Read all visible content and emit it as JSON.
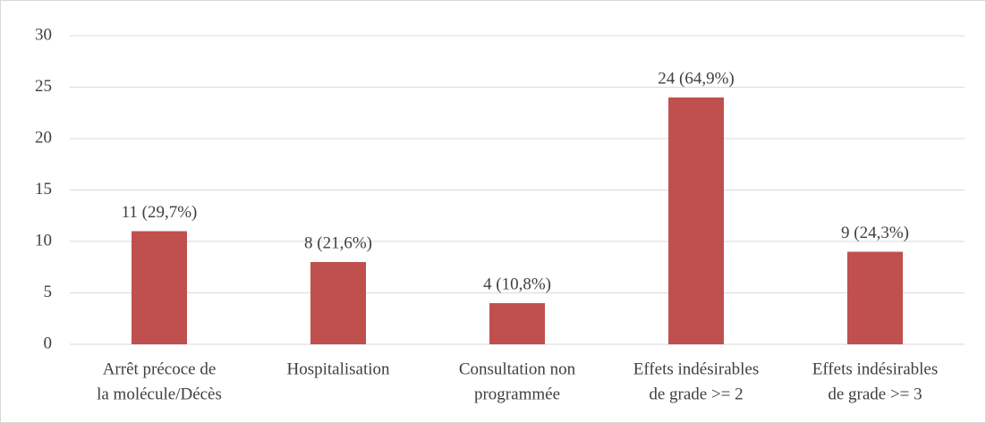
{
  "chart_data": {
    "type": "bar",
    "categories": [
      [
        "Arrêt précoce de",
        "la molécule/Décès"
      ],
      [
        "Hospitalisation"
      ],
      [
        "Consultation non",
        "programmée"
      ],
      [
        "Effets indésirables",
        "de grade >= 2"
      ],
      [
        "Effets indésirables",
        "de grade >= 3"
      ]
    ],
    "values": [
      11,
      8,
      4,
      24,
      9
    ],
    "value_labels": [
      "11 (29,7%)",
      "8 (21,6%)",
      "4 (10,8%)",
      "24 (64,9%)",
      "9 (24,3%)"
    ],
    "color": "#c0504d",
    "ylim": [
      0,
      30
    ],
    "yticks": [
      0,
      5,
      10,
      15,
      20,
      25,
      30
    ],
    "grid": true
  }
}
